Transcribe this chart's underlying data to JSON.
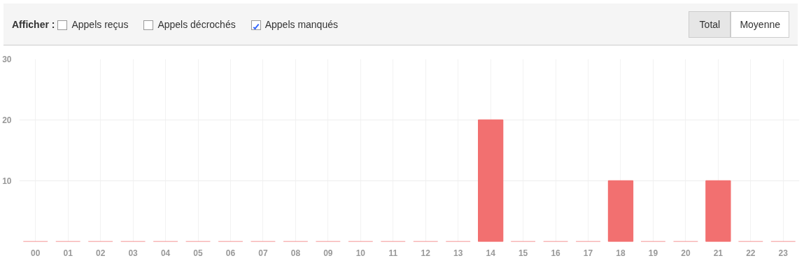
{
  "chart_data": {
    "type": "bar",
    "categories": [
      "00",
      "01",
      "02",
      "03",
      "04",
      "05",
      "06",
      "07",
      "08",
      "09",
      "10",
      "11",
      "12",
      "13",
      "14",
      "15",
      "16",
      "17",
      "18",
      "19",
      "20",
      "21",
      "22",
      "23"
    ],
    "series": [
      {
        "name": "Appels manqués",
        "color": "#f27070",
        "values": [
          0,
          0,
          0,
          0,
          0,
          0,
          0,
          0,
          0,
          0,
          0,
          0,
          0,
          0,
          20,
          0,
          0,
          0,
          10,
          0,
          0,
          10,
          0,
          0
        ]
      }
    ],
    "ylim": [
      0,
      30
    ],
    "yticks": [
      10,
      20,
      30
    ],
    "grid": true,
    "annotations": [
      "Afficher :",
      "Appels reçus",
      "Appels décrochés",
      "Total",
      "Moyenne"
    ]
  }
}
